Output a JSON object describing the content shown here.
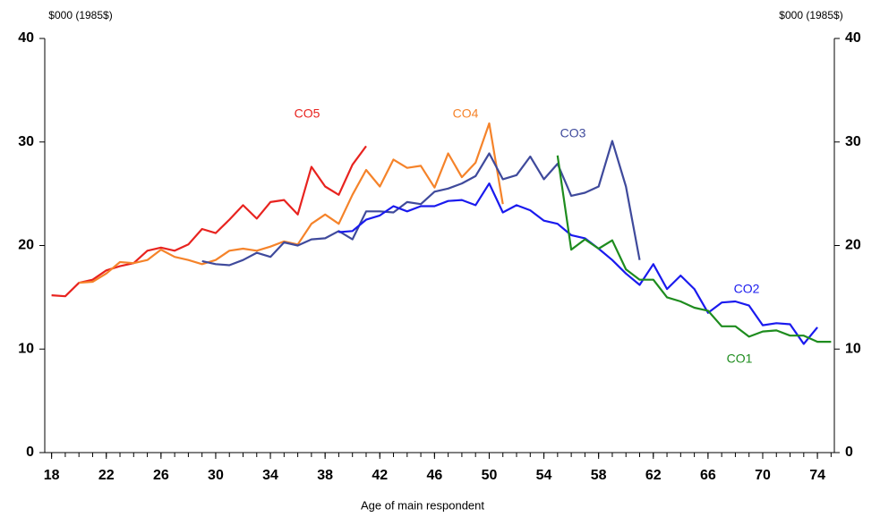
{
  "chart_data": {
    "type": "line",
    "unit_left": "$000 (1985$)",
    "unit_right": "$000 (1985$)",
    "x_label": "Age of main respondent",
    "x": [
      18,
      19,
      20,
      21,
      22,
      23,
      24,
      25,
      26,
      27,
      28,
      29,
      30,
      31,
      32,
      33,
      34,
      35,
      36,
      37,
      38,
      39,
      40,
      41,
      42,
      43,
      44,
      45,
      46,
      47,
      48,
      49,
      50,
      51,
      52,
      53,
      54,
      55,
      56,
      57,
      58,
      59,
      60,
      61,
      62,
      63,
      64,
      65,
      66,
      67,
      68,
      69,
      70,
      71,
      72,
      73,
      74,
      75
    ],
    "xlim": [
      17.5,
      75.5
    ],
    "xticks": [
      18,
      22,
      26,
      30,
      34,
      38,
      42,
      46,
      50,
      54,
      58,
      62,
      66,
      70,
      74
    ],
    "ylim": [
      0,
      40
    ],
    "yticks": [
      0,
      10,
      20,
      30,
      40
    ],
    "y2lim": [
      0,
      40
    ],
    "y2ticks": [
      0,
      10,
      20,
      30,
      40
    ],
    "series": [
      {
        "name": "CO5",
        "color": "#e8231f",
        "values": [
          15.2,
          15.1,
          16.4,
          16.7,
          17.6,
          18.0,
          18.3,
          19.5,
          19.8,
          19.5,
          20.1,
          21.6,
          21.2,
          22.5,
          23.9,
          22.6,
          24.2,
          24.4,
          23.0,
          27.6,
          25.7,
          24.9,
          27.8,
          29.6,
          null,
          null,
          null,
          null,
          null,
          null,
          null,
          null,
          null,
          null,
          null,
          null,
          null,
          null,
          null,
          null,
          null,
          null,
          null,
          null,
          null,
          null,
          null,
          null,
          null,
          null,
          null,
          null,
          null,
          null,
          null,
          null,
          null,
          null
        ]
      },
      {
        "name": "CO4",
        "color": "#f5832a",
        "values": [
          null,
          null,
          16.4,
          16.5,
          17.3,
          18.4,
          18.3,
          18.6,
          19.6,
          18.9,
          18.6,
          18.2,
          18.6,
          19.5,
          19.7,
          19.5,
          19.9,
          20.4,
          20.1,
          22.1,
          23.0,
          22.1,
          24.9,
          27.3,
          25.7,
          28.3,
          27.5,
          27.7,
          25.6,
          28.9,
          26.6,
          28.0,
          31.8,
          24.0,
          null,
          null,
          null,
          null,
          null,
          null,
          null,
          null,
          null,
          null,
          null,
          null,
          null,
          null,
          null,
          null,
          null,
          null,
          null,
          null,
          null,
          null,
          null,
          null
        ]
      },
      {
        "name": "CO3",
        "color": "#3f4a9c",
        "values": [
          null,
          null,
          null,
          null,
          null,
          null,
          null,
          null,
          null,
          null,
          null,
          18.5,
          18.2,
          18.1,
          18.6,
          19.3,
          18.9,
          20.3,
          20.0,
          20.6,
          20.7,
          21.4,
          20.6,
          23.3,
          23.3,
          23.2,
          24.2,
          24.0,
          25.2,
          25.5,
          26.0,
          26.7,
          28.9,
          26.4,
          26.8,
          28.6,
          26.4,
          27.9,
          24.8,
          25.1,
          25.7,
          30.1,
          25.7,
          18.6,
          null,
          null,
          null,
          null,
          null,
          null,
          null,
          null,
          null,
          null,
          null,
          null,
          null,
          null
        ]
      },
      {
        "name": "CO2",
        "color": "#1a1aee",
        "values": [
          null,
          null,
          null,
          null,
          null,
          null,
          null,
          null,
          null,
          null,
          null,
          null,
          null,
          null,
          null,
          null,
          null,
          null,
          null,
          null,
          null,
          21.3,
          21.4,
          22.5,
          22.9,
          23.8,
          23.3,
          23.8,
          23.8,
          24.3,
          24.4,
          23.9,
          26.0,
          23.2,
          23.9,
          23.4,
          22.4,
          22.1,
          21.0,
          20.7,
          19.7,
          18.6,
          17.3,
          16.2,
          18.2,
          15.8,
          17.1,
          15.8,
          13.5,
          14.5,
          14.6,
          14.2,
          12.3,
          12.5,
          12.4,
          10.5,
          12.1,
          null
        ]
      },
      {
        "name": "CO1",
        "color": "#1e8c1e",
        "values": [
          null,
          null,
          null,
          null,
          null,
          null,
          null,
          null,
          null,
          null,
          null,
          null,
          null,
          null,
          null,
          null,
          null,
          null,
          null,
          null,
          null,
          null,
          null,
          null,
          null,
          null,
          null,
          null,
          null,
          null,
          null,
          null,
          null,
          null,
          null,
          null,
          null,
          28.7,
          19.6,
          20.6,
          19.7,
          20.5,
          17.7,
          16.7,
          16.7,
          15.0,
          14.6,
          14.0,
          13.7,
          12.2,
          12.2,
          11.2,
          11.7,
          11.8,
          11.3,
          11.3,
          10.7,
          10.7
        ]
      }
    ]
  }
}
